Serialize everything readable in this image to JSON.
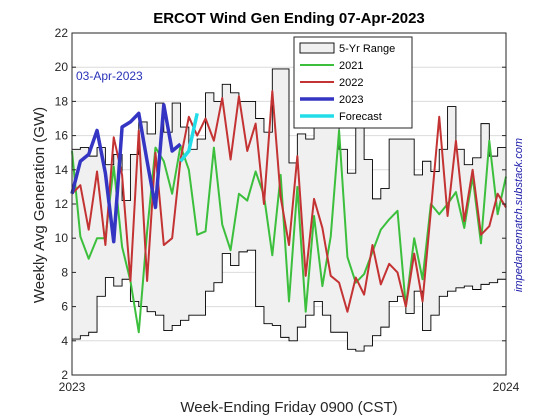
{
  "chart_data": {
    "type": "line",
    "title": "ERCOT Wind Gen Ending 07-Apr-2023",
    "xlabel": "Week-Ending Friday 0900 (CST)",
    "ylabel": "Weekly Avg Generation (GW)",
    "ylim": [
      2,
      22
    ],
    "yticks": [
      2,
      4,
      6,
      8,
      10,
      12,
      14,
      16,
      18,
      20,
      22
    ],
    "xlim": [
      0,
      52
    ],
    "xticks": [
      {
        "value": 0,
        "label": "2023"
      },
      {
        "value": 52,
        "label": "2024"
      }
    ],
    "grid": true,
    "legend_position": "top-right",
    "annotation": "03-Apr-2023",
    "side_note": "impedancematch.substack.com",
    "range": {
      "name": "5-Yr Range",
      "color": "#f0f0f0",
      "edge_color": "#000000",
      "x": [
        0,
        1,
        2,
        3,
        4,
        5,
        6,
        7,
        8,
        9,
        10,
        11,
        12,
        13,
        14,
        15,
        16,
        17,
        18,
        19,
        20,
        21,
        22,
        23,
        24,
        25,
        26,
        27,
        28,
        29,
        30,
        31,
        32,
        33,
        34,
        35,
        36,
        37,
        38,
        39,
        40,
        41,
        42,
        43,
        44,
        45,
        46,
        47,
        48,
        49,
        50,
        51,
        52
      ],
      "upper": [
        15.2,
        15.3,
        14.8,
        15.3,
        14.3,
        14.9,
        12.2,
        14.9,
        16.8,
        16.1,
        17.9,
        16.2,
        17.9,
        16.5,
        15.2,
        15.8,
        18.5,
        18.0,
        19.0,
        18.5,
        18.0,
        18.0,
        17.0,
        16.2,
        19.9,
        19.9,
        14.4,
        16.1,
        15.8,
        18.3,
        17.9,
        16.5,
        15.2,
        13.8,
        16.8,
        14.6,
        12.3,
        12.9,
        15.8,
        15.8,
        15.8,
        13.7,
        14.5,
        13.9,
        15.2,
        17.7,
        15.2,
        14.3,
        14.7,
        16.7,
        14.8,
        15.3,
        14.8
      ],
      "lower": [
        4.1,
        4.3,
        4.5,
        6.6,
        7.7,
        7.2,
        7.6,
        6.3,
        6.0,
        5.7,
        5.5,
        4.6,
        4.9,
        5.2,
        5.5,
        5.5,
        6.9,
        7.4,
        9.1,
        8.4,
        9.2,
        9.3,
        6.0,
        5.0,
        4.9,
        4.2,
        4.0,
        4.8,
        5.5,
        6.3,
        5.5,
        4.5,
        4.5,
        3.5,
        3.4,
        3.7,
        4.3,
        4.8,
        6.3,
        6.6,
        5.6,
        6.9,
        4.6,
        5.5,
        6.6,
        6.9,
        7.1,
        7.2,
        7.0,
        7.3,
        7.4,
        7.6,
        7.6
      ]
    },
    "series": [
      {
        "name": "2021",
        "color": "#3cbf3c",
        "width": 2,
        "x": [
          0,
          1,
          2,
          3,
          4,
          5,
          6,
          7,
          8,
          9,
          10,
          11,
          12,
          13,
          14,
          15,
          16,
          17,
          18,
          19,
          20,
          21,
          22,
          23,
          24,
          25,
          26,
          27,
          28,
          29,
          30,
          31,
          32,
          33,
          34,
          35,
          36,
          37,
          38,
          39,
          40,
          41,
          42,
          43,
          44,
          45,
          46,
          47,
          48,
          49,
          50,
          51,
          52
        ],
        "values": [
          15.1,
          10.1,
          8.8,
          10.0,
          10.0,
          14.2,
          9.5,
          7.5,
          4.5,
          10.4,
          15.3,
          14.5,
          12.6,
          15.4,
          14.0,
          10.2,
          10.4,
          15.3,
          10.8,
          9.3,
          12.6,
          12.2,
          13.9,
          12.5,
          9.0,
          13.7,
          6.3,
          13.0,
          5.7,
          11.3,
          7.2,
          10.1,
          16.3,
          8.9,
          7.4,
          7.9,
          9.2,
          10.5,
          11.1,
          11.6,
          6.0,
          10.0,
          7.6,
          12.0,
          11.4,
          12.0,
          12.7,
          10.6,
          13.6,
          9.7,
          15.7,
          11.4,
          13.6
        ]
      },
      {
        "name": "2022",
        "color": "#c43333",
        "width": 2,
        "x": [
          0,
          1,
          2,
          3,
          4,
          5,
          6,
          7,
          8,
          9,
          10,
          11,
          12,
          13,
          14,
          15,
          16,
          17,
          18,
          19,
          20,
          21,
          22,
          23,
          24,
          25,
          26,
          27,
          28,
          29,
          30,
          31,
          32,
          33,
          34,
          35,
          36,
          37,
          38,
          39,
          40,
          41,
          42,
          43,
          44,
          45,
          46,
          47,
          48,
          49,
          50,
          51,
          52
        ],
        "values": [
          12.6,
          13.1,
          10.5,
          13.9,
          9.6,
          15.9,
          13.7,
          7.5,
          16.3,
          7.5,
          15.0,
          9.6,
          10.0,
          14.6,
          17.1,
          16.0,
          17.0,
          15.7,
          18.2,
          14.6,
          18.3,
          15.1,
          16.7,
          12.0,
          18.6,
          12.4,
          9.6,
          14.8,
          7.8,
          12.3,
          10.6,
          7.8,
          7.4,
          5.7,
          7.7,
          6.7,
          9.6,
          7.3,
          8.5,
          8.0,
          6.0,
          9.1,
          6.3,
          11.6,
          17.1,
          11.3,
          15.7,
          11.0,
          14.0,
          10.2,
          10.7,
          12.6,
          11.8
        ]
      },
      {
        "name": "2023",
        "color": "#3535c4",
        "width": 3.5,
        "x": [
          0,
          1,
          2,
          3,
          4,
          5,
          6,
          7,
          8,
          9,
          10,
          11,
          12,
          13
        ],
        "values": [
          12.6,
          14.5,
          14.9,
          16.3,
          13.8,
          9.8,
          16.5,
          16.8,
          17.3,
          14.5,
          11.8,
          17.8,
          15.1,
          15.5
        ]
      },
      {
        "name": "Forecast",
        "color": "#22dde8",
        "width": 3.5,
        "x": [
          13,
          14,
          15
        ],
        "values": [
          14.5,
          15.1,
          17.3
        ]
      }
    ]
  }
}
